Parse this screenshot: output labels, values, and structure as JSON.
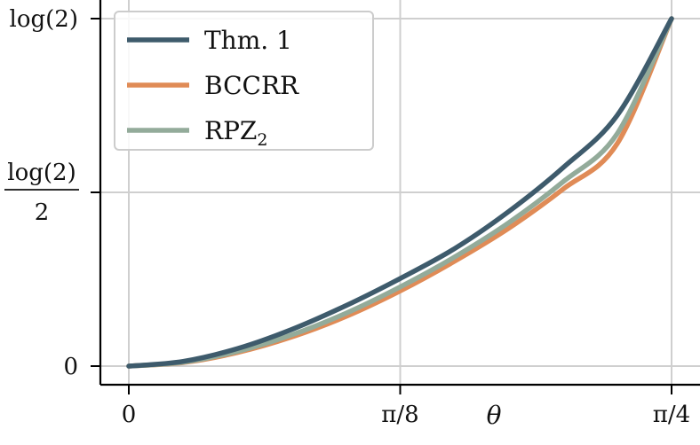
{
  "chart_data": {
    "type": "line",
    "xlabel": "θ",
    "ylabel": "",
    "xlim": [
      0,
      0.7853981634
    ],
    "ylim": [
      0,
      0.6931471806
    ],
    "grid": true,
    "legend_position": "top-left",
    "x_ticks": [
      {
        "value": 0,
        "label": "0"
      },
      {
        "value": 0.3926990817,
        "label": "π/8"
      },
      {
        "value": 0.7853981634,
        "label": "π/4"
      }
    ],
    "y_ticks": [
      {
        "value": 0,
        "label": "0"
      },
      {
        "value": 0.3465735903,
        "label_num": "log(2)",
        "label_den": "2"
      },
      {
        "value": 0.6931471806,
        "label": "log(2)"
      }
    ],
    "series": [
      {
        "name": "Thm. 1",
        "color": "#3e5b6c",
        "x": [
          0,
          0.0785,
          0.1571,
          0.2356,
          0.3142,
          0.3927,
          0.4712,
          0.5498,
          0.6283,
          0.7069,
          0.7854
        ],
        "y": [
          0,
          0.0094,
          0.0349,
          0.073,
          0.1207,
          0.1748,
          0.2342,
          0.3084,
          0.3957,
          0.5005,
          0.6931
        ]
      },
      {
        "name": "BCCRR",
        "color": "#e08b56",
        "x": [
          0,
          0.0785,
          0.1571,
          0.2356,
          0.3142,
          0.3927,
          0.4712,
          0.5498,
          0.6283,
          0.7069,
          0.7854
        ],
        "y": [
          0,
          0.007,
          0.027,
          0.058,
          0.099,
          0.15,
          0.209,
          0.275,
          0.353,
          0.444,
          0.6931
        ]
      },
      {
        "name": "RPZ",
        "name_sub": "2",
        "color": "#93ab9a",
        "x": [
          0,
          0.0785,
          0.1571,
          0.2356,
          0.3142,
          0.3927,
          0.4712,
          0.5498,
          0.6283,
          0.7069,
          0.7854
        ],
        "y": [
          0,
          0.0078,
          0.0292,
          0.0622,
          0.1055,
          0.158,
          0.2175,
          0.286,
          0.3675,
          0.464,
          0.6931
        ]
      }
    ]
  }
}
